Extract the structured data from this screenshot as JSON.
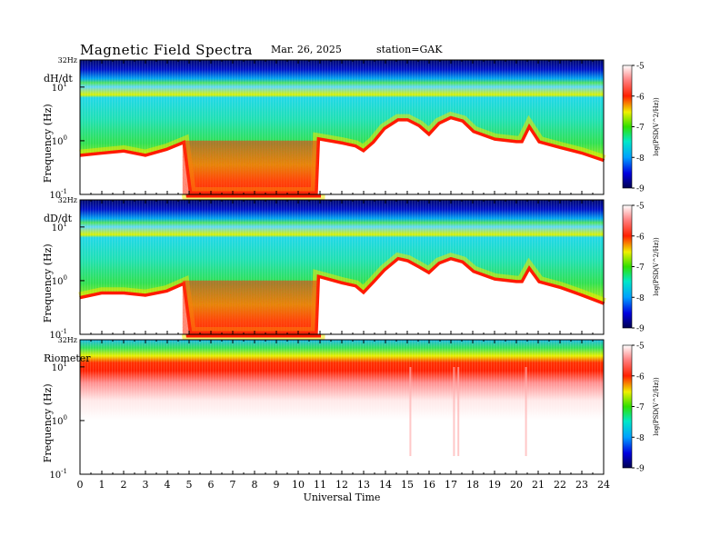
{
  "header": {
    "title": "Magnetic  Field  Spectra",
    "date": "Mar. 26, 2025",
    "station": "station=GAK"
  },
  "chart_data": [
    {
      "type": "heatmap",
      "panel_label": "dH/dt",
      "ylabel": "Frequency  (Hz)",
      "y_top_label": "32Hz",
      "y_ticks": [
        {
          "base": "10",
          "exp": "1"
        },
        {
          "base": "10",
          "exp": "0"
        },
        {
          "base": "10",
          "exp": "-1"
        }
      ],
      "ylim": [
        0.1,
        32
      ],
      "xlim": [
        0,
        24
      ],
      "low_freq_cutoff_profile": {
        "ut_hours": [
          0,
          1,
          2,
          3,
          4,
          4.7,
          5,
          6,
          8,
          10,
          10.9,
          11,
          12,
          12.6,
          13,
          13.5,
          14,
          14.6,
          15,
          15.5,
          16,
          16.5,
          17,
          17.5,
          18,
          19,
          20,
          20.3,
          20.6,
          21,
          22,
          23,
          24
        ],
        "freq_hz": [
          0.5,
          0.55,
          0.6,
          0.5,
          0.65,
          0.85,
          0.1,
          0.1,
          0.1,
          0.1,
          0.1,
          1.0,
          0.85,
          0.75,
          0.6,
          0.9,
          1.6,
          2.3,
          2.3,
          1.8,
          1.2,
          2.0,
          2.5,
          2.2,
          1.4,
          1.0,
          0.9,
          0.9,
          1.6,
          0.9,
          0.7,
          0.55,
          0.4
        ]
      },
      "colorbar": {
        "label": "log(PSD(V^2/Hz))",
        "ticks": [
          "-5",
          "-6",
          "-7",
          "-8",
          "-9"
        ],
        "range": [
          -9,
          -5
        ]
      }
    },
    {
      "type": "heatmap",
      "panel_label": "dD/dt",
      "ylabel": "Frequency  (Hz)",
      "y_top_label": "32Hz",
      "y_ticks": [
        {
          "base": "10",
          "exp": "1"
        },
        {
          "base": "10",
          "exp": "0"
        },
        {
          "base": "10",
          "exp": "-1"
        }
      ],
      "ylim": [
        0.1,
        32
      ],
      "xlim": [
        0,
        24
      ],
      "low_freq_cutoff_profile": {
        "ut_hours": [
          0,
          1,
          2,
          3,
          4,
          4.7,
          5,
          6,
          8,
          10,
          10.9,
          11,
          12,
          12.6,
          13,
          13.5,
          14,
          14.6,
          15,
          15.5,
          16,
          16.5,
          17,
          17.5,
          18,
          19,
          20,
          20.3,
          20.6,
          21,
          22,
          23,
          24
        ],
        "freq_hz": [
          0.45,
          0.55,
          0.55,
          0.5,
          0.6,
          0.8,
          0.1,
          0.1,
          0.1,
          0.1,
          0.1,
          1.1,
          0.85,
          0.75,
          0.55,
          0.9,
          1.5,
          2.4,
          2.2,
          1.7,
          1.3,
          2.0,
          2.4,
          2.1,
          1.4,
          1.0,
          0.9,
          0.9,
          1.5,
          0.9,
          0.7,
          0.5,
          0.35
        ]
      },
      "colorbar": {
        "label": "log(PSD(V^2/Hz))",
        "ticks": [
          "-5",
          "-6",
          "-7",
          "-8",
          "-9"
        ],
        "range": [
          -9,
          -5
        ]
      }
    },
    {
      "type": "heatmap",
      "panel_label": "Riometer",
      "ylabel": "Frequency  (Hz)",
      "y_top_label": "32Hz",
      "y_ticks": [
        {
          "base": "10",
          "exp": "1"
        },
        {
          "base": "10",
          "exp": "0"
        },
        {
          "base": "10",
          "exp": "-1"
        }
      ],
      "ylim": [
        0.1,
        32
      ],
      "xlim": [
        0,
        24
      ],
      "xlabel": "Universal  Time",
      "x_ticks": [
        "0",
        "1",
        "2",
        "3",
        "4",
        "5",
        "6",
        "7",
        "8",
        "9",
        "10",
        "11",
        "12",
        "13",
        "14",
        "15",
        "16",
        "17",
        "18",
        "19",
        "20",
        "21",
        "22",
        "23",
        "24"
      ],
      "colorbar": {
        "label": "log(PSD(V^2/Hz))",
        "ticks": [
          "-5",
          "-6",
          "-7",
          "-8",
          "-9"
        ],
        "range": [
          -9,
          -5
        ]
      }
    }
  ]
}
